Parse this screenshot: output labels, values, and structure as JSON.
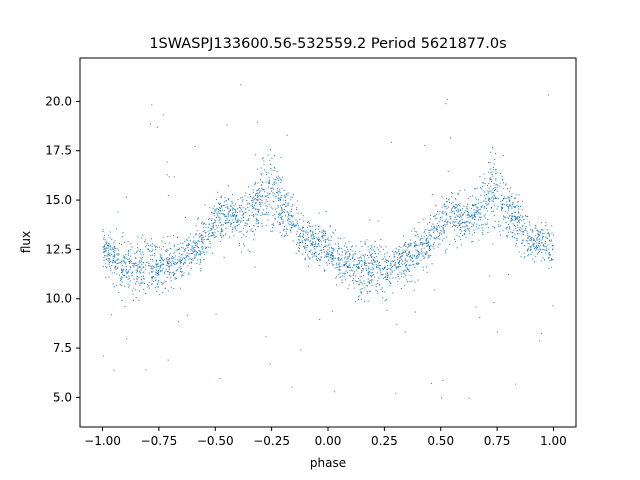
{
  "chart_data": {
    "type": "scatter",
    "title": "1SWASPJ133600.56-532559.2 Period 5621877.0s",
    "xlabel": "phase",
    "ylabel": "flux",
    "xlim": [
      -1.1,
      1.1
    ],
    "ylim": [
      3.5,
      22.2
    ],
    "xticks": [
      -1.0,
      -0.75,
      -0.5,
      -0.25,
      0.0,
      0.25,
      0.5,
      0.75,
      1.0
    ],
    "xtick_labels": [
      "−1.00",
      "−0.75",
      "−0.50",
      "−0.25",
      "0.00",
      "0.25",
      "0.50",
      "0.75",
      "1.00"
    ],
    "yticks": [
      5.0,
      7.5,
      10.0,
      12.5,
      15.0,
      17.5,
      20.0
    ],
    "ytick_labels": [
      "5.0",
      "7.5",
      "10.0",
      "12.5",
      "15.0",
      "17.5",
      "20.0"
    ],
    "grid": false,
    "point_color": "#1f77b4",
    "series": [
      {
        "phase": [
          -1.0,
          -0.95,
          -0.9,
          -0.85,
          -0.8,
          -0.75,
          -0.7,
          -0.65,
          -0.6,
          -0.55,
          -0.5,
          -0.45,
          -0.4,
          -0.35,
          -0.3,
          -0.25,
          -0.2,
          -0.15,
          -0.1,
          -0.05,
          0.0,
          0.05,
          0.1,
          0.15,
          0.2,
          0.25,
          0.3,
          0.35,
          0.4,
          0.45,
          0.5,
          0.55,
          0.6,
          0.65,
          0.7,
          0.75,
          0.8,
          0.85,
          0.9,
          0.95,
          1.0
        ],
        "flux_mean": [
          12.6,
          11.9,
          11.6,
          11.3,
          11.7,
          11.5,
          11.8,
          12.0,
          12.4,
          12.9,
          13.8,
          14.3,
          13.9,
          14.2,
          15.0,
          15.4,
          14.5,
          13.7,
          13.0,
          12.8,
          12.6,
          11.9,
          11.6,
          11.3,
          11.7,
          11.5,
          11.8,
          12.0,
          12.4,
          12.9,
          13.8,
          14.3,
          13.9,
          14.2,
          15.0,
          15.4,
          14.5,
          13.7,
          13.0,
          12.8,
          12.6
        ],
        "flux_spread": [
          0.9,
          1.0,
          1.2,
          1.3,
          1.2,
          1.2,
          1.1,
          1.0,
          1.0,
          1.0,
          1.1,
          1.2,
          1.1,
          1.3,
          1.6,
          1.8,
          1.2,
          1.1,
          1.0,
          0.9,
          0.9,
          1.0,
          1.2,
          1.3,
          1.2,
          1.2,
          1.1,
          1.0,
          1.0,
          1.0,
          1.1,
          1.2,
          1.1,
          1.3,
          1.6,
          1.8,
          1.2,
          1.1,
          1.0,
          0.9,
          0.9
        ]
      }
    ]
  }
}
